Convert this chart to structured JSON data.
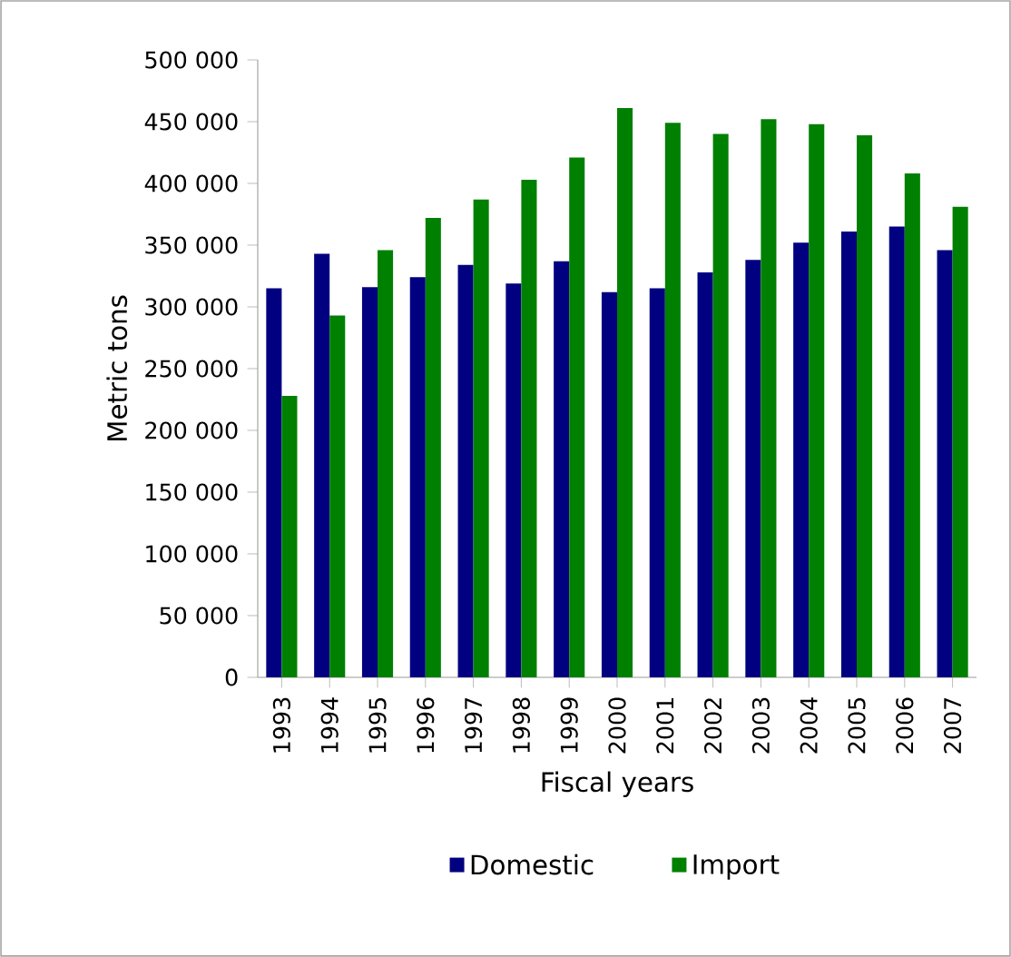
{
  "chart_data": {
    "type": "bar",
    "xlabel": "Fiscal years",
    "ylabel": "Metric tons",
    "categories": [
      "1993",
      "1994",
      "1995",
      "1996",
      "1997",
      "1998",
      "1999",
      "2000",
      "2001",
      "2002",
      "2003",
      "2004",
      "2005",
      "2006",
      "2007"
    ],
    "series": [
      {
        "name": "Domestic",
        "color": "#000080",
        "values": [
          315000,
          343000,
          316000,
          324000,
          334000,
          319000,
          337000,
          312000,
          315000,
          328000,
          338000,
          352000,
          361000,
          365000,
          346000
        ]
      },
      {
        "name": "Import",
        "color": "#008000",
        "values": [
          228000,
          293000,
          346000,
          372000,
          387000,
          403000,
          421000,
          461000,
          449000,
          440000,
          452000,
          448000,
          439000,
          408000,
          381000
        ]
      }
    ],
    "ylim": [
      0,
      500000
    ],
    "yticks": [
      {
        "value": 0,
        "label": "0"
      },
      {
        "value": 50000,
        "label": "50 000"
      },
      {
        "value": 100000,
        "label": "100 000"
      },
      {
        "value": 150000,
        "label": "150 000"
      },
      {
        "value": 200000,
        "label": "200 000"
      },
      {
        "value": 250000,
        "label": "250 000"
      },
      {
        "value": 300000,
        "label": "300 000"
      },
      {
        "value": 350000,
        "label": "350 000"
      },
      {
        "value": 400000,
        "label": "400 000"
      },
      {
        "value": 450000,
        "label": "450 000"
      },
      {
        "value": 500000,
        "label": "500 000"
      }
    ],
    "grid": false,
    "legend": "bottom"
  }
}
